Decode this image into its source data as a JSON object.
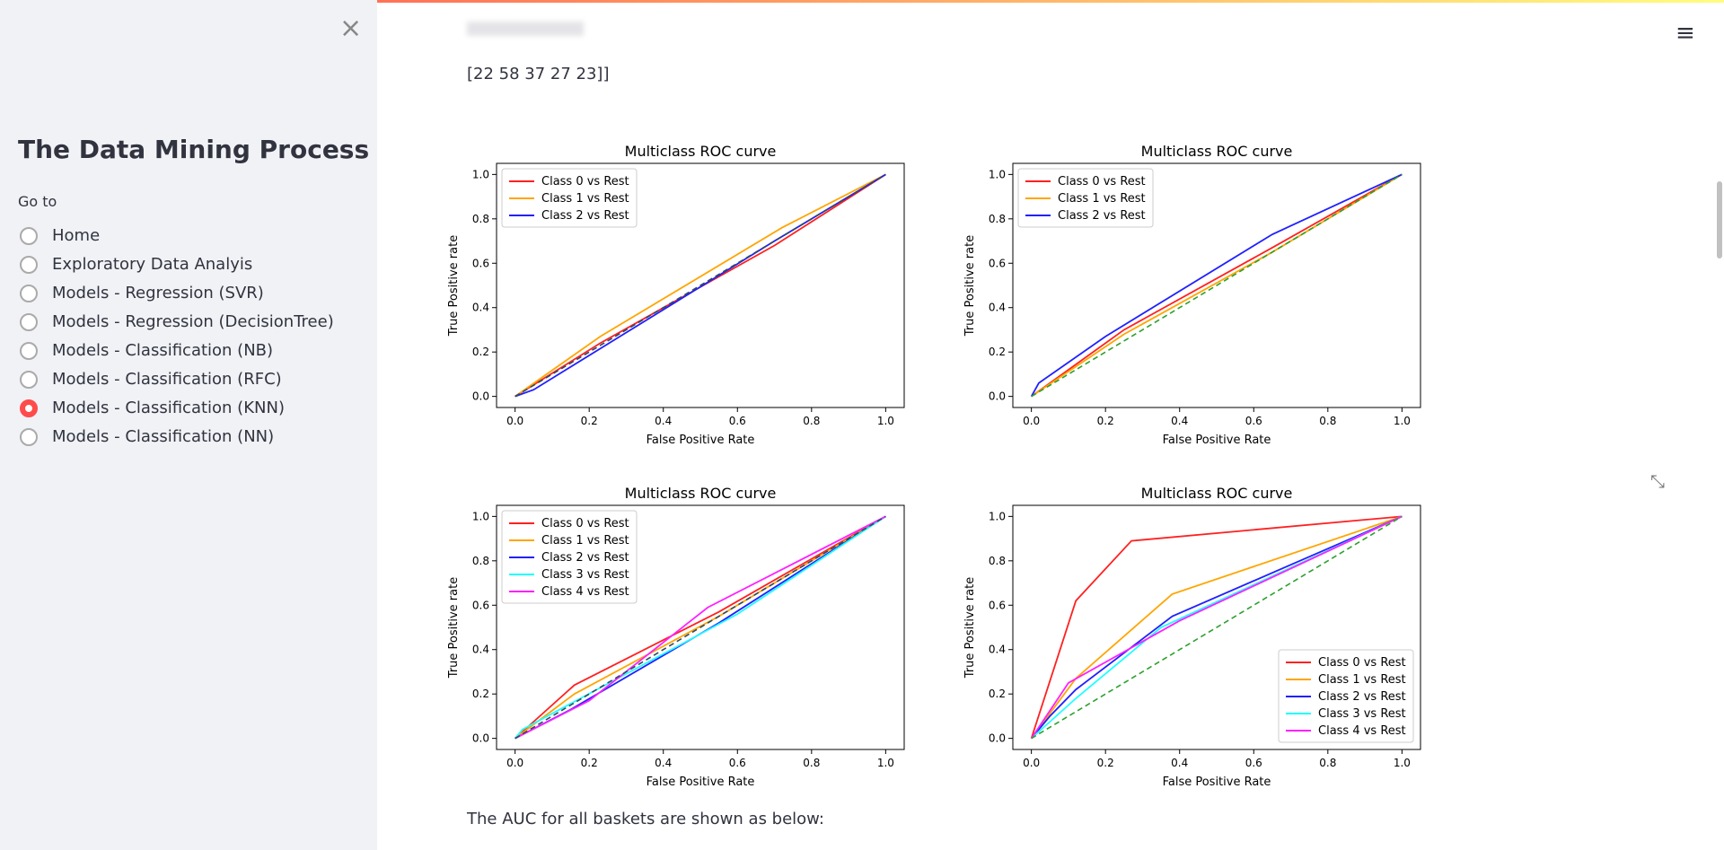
{
  "sidebar": {
    "title": "The Data Mining Process",
    "label": "Go to",
    "options": [
      "Home",
      "Exploratory Data Analyis",
      "Models - Regression (SVR)",
      "Models - Regression (DecisionTree)",
      "Models - Classification (NB)",
      "Models - Classification (RFC)",
      "Models - Classification (KNN)",
      "Models - Classification (NN)"
    ],
    "selected": 6
  },
  "content": {
    "matrix_tail": "[22 58 37 27 23]]",
    "footer": "The AUC for all baskets are shown as below:"
  },
  "chart_data": [
    {
      "type": "line",
      "title": "Multiclass ROC curve",
      "xlabel": "False Positive Rate",
      "ylabel": "True Positive rate",
      "xlim": [
        -0.05,
        1.05
      ],
      "ylim": [
        -0.05,
        1.05
      ],
      "xticks": [
        {
          "value": 0,
          "label": "0.0"
        },
        {
          "value": 0.2,
          "label": "0.2"
        },
        {
          "value": 0.4,
          "label": "0.4"
        },
        {
          "value": 0.6,
          "label": "0.6"
        },
        {
          "value": 0.8,
          "label": "0.8"
        },
        {
          "value": 1,
          "label": "1.0"
        }
      ],
      "yticks": [
        {
          "value": 0,
          "label": "0.0"
        },
        {
          "value": 0.2,
          "label": "0.2"
        },
        {
          "value": 0.4,
          "label": "0.4"
        },
        {
          "value": 0.6,
          "label": "0.6"
        },
        {
          "value": 0.8,
          "label": "0.8"
        },
        {
          "value": 1,
          "label": "1.0"
        }
      ],
      "legend": "upper left",
      "reference_line": {
        "x": [
          0,
          1
        ],
        "values": [
          0,
          1
        ],
        "color": "#2e4a62"
      },
      "series": [
        {
          "name": "Class 0 vs Rest",
          "color": "#ff2020",
          "x": [
            0,
            0.23,
            0.7,
            1
          ],
          "values": [
            0,
            0.24,
            0.68,
            1
          ]
        },
        {
          "name": "Class 1 vs Rest",
          "color": "#ffa500",
          "x": [
            0,
            0.23,
            0.72,
            1
          ],
          "values": [
            0,
            0.27,
            0.76,
            1
          ]
        },
        {
          "name": "Class 2 vs Rest",
          "color": "#2020ff",
          "x": [
            0,
            0.05,
            0.7,
            1
          ],
          "values": [
            0,
            0.03,
            0.7,
            1
          ]
        }
      ]
    },
    {
      "type": "line",
      "title": "Multiclass ROC curve",
      "xlabel": "False Positive Rate",
      "ylabel": "True Positive rate",
      "xlim": [
        -0.05,
        1.05
      ],
      "ylim": [
        -0.05,
        1.05
      ],
      "xticks": [
        {
          "value": 0,
          "label": "0.0"
        },
        {
          "value": 0.2,
          "label": "0.2"
        },
        {
          "value": 0.4,
          "label": "0.4"
        },
        {
          "value": 0.6,
          "label": "0.6"
        },
        {
          "value": 0.8,
          "label": "0.8"
        },
        {
          "value": 1,
          "label": "1.0"
        }
      ],
      "yticks": [
        {
          "value": 0,
          "label": "0.0"
        },
        {
          "value": 0.2,
          "label": "0.2"
        },
        {
          "value": 0.4,
          "label": "0.4"
        },
        {
          "value": 0.6,
          "label": "0.6"
        },
        {
          "value": 0.8,
          "label": "0.8"
        },
        {
          "value": 1,
          "label": "1.0"
        }
      ],
      "legend": "upper left",
      "reference_line": {
        "x": [
          0,
          1
        ],
        "values": [
          0,
          1
        ],
        "color": "#2ca02c"
      },
      "series": [
        {
          "name": "Class 0 vs Rest",
          "color": "#ff2020",
          "x": [
            0,
            0.25,
            0.65,
            1
          ],
          "values": [
            0,
            0.3,
            0.67,
            1
          ]
        },
        {
          "name": "Class 1 vs Rest",
          "color": "#ffa500",
          "x": [
            0,
            0.25,
            0.65,
            1
          ],
          "values": [
            0,
            0.28,
            0.65,
            1
          ]
        },
        {
          "name": "Class 2 vs Rest",
          "color": "#2020ff",
          "x": [
            0,
            0.02,
            0.2,
            0.65,
            1
          ],
          "values": [
            0,
            0.06,
            0.27,
            0.73,
            1
          ]
        }
      ]
    },
    {
      "type": "line",
      "title": "Multiclass ROC curve",
      "xlabel": "False Positive Rate",
      "ylabel": "True Positive rate",
      "xlim": [
        -0.05,
        1.05
      ],
      "ylim": [
        -0.05,
        1.05
      ],
      "xticks": [
        {
          "value": 0,
          "label": "0.0"
        },
        {
          "value": 0.2,
          "label": "0.2"
        },
        {
          "value": 0.4,
          "label": "0.4"
        },
        {
          "value": 0.6,
          "label": "0.6"
        },
        {
          "value": 0.8,
          "label": "0.8"
        },
        {
          "value": 1,
          "label": "1.0"
        }
      ],
      "yticks": [
        {
          "value": 0,
          "label": "0.0"
        },
        {
          "value": 0.2,
          "label": "0.2"
        },
        {
          "value": 0.4,
          "label": "0.4"
        },
        {
          "value": 0.6,
          "label": "0.6"
        },
        {
          "value": 0.8,
          "label": "0.8"
        },
        {
          "value": 1,
          "label": "1.0"
        }
      ],
      "legend": "upper left",
      "reference_line": {
        "x": [
          0,
          1
        ],
        "values": [
          0,
          1
        ],
        "color": "#2e4a62"
      },
      "series": [
        {
          "name": "Class 0 vs Rest",
          "color": "#ff2020",
          "x": [
            0,
            0.16,
            0.55,
            1
          ],
          "values": [
            0,
            0.24,
            0.57,
            1
          ]
        },
        {
          "name": "Class 1 vs Rest",
          "color": "#ffa500",
          "x": [
            0,
            0.16,
            0.55,
            1
          ],
          "values": [
            0,
            0.2,
            0.55,
            1
          ]
        },
        {
          "name": "Class 2 vs Rest",
          "color": "#2020ff",
          "x": [
            0,
            0.15,
            0.55,
            1
          ],
          "values": [
            0,
            0.13,
            0.52,
            1
          ]
        },
        {
          "name": "Class 3 vs Rest",
          "color": "#20ffff",
          "x": [
            0,
            0.02,
            0.6,
            1
          ],
          "values": [
            0,
            0.04,
            0.56,
            1
          ]
        },
        {
          "name": "Class 4 vs Rest",
          "color": "#ff20ff",
          "x": [
            0,
            0.2,
            0.52,
            1
          ],
          "values": [
            0,
            0.17,
            0.59,
            1
          ]
        }
      ]
    },
    {
      "type": "line",
      "title": "Multiclass ROC curve",
      "xlabel": "False Positive Rate",
      "ylabel": "True Positive rate",
      "xlim": [
        -0.05,
        1.05
      ],
      "ylim": [
        -0.05,
        1.05
      ],
      "xticks": [
        {
          "value": 0,
          "label": "0.0"
        },
        {
          "value": 0.2,
          "label": "0.2"
        },
        {
          "value": 0.4,
          "label": "0.4"
        },
        {
          "value": 0.6,
          "label": "0.6"
        },
        {
          "value": 0.8,
          "label": "0.8"
        },
        {
          "value": 1,
          "label": "1.0"
        }
      ],
      "yticks": [
        {
          "value": 0,
          "label": "0.0"
        },
        {
          "value": 0.2,
          "label": "0.2"
        },
        {
          "value": 0.4,
          "label": "0.4"
        },
        {
          "value": 0.6,
          "label": "0.6"
        },
        {
          "value": 0.8,
          "label": "0.8"
        },
        {
          "value": 1,
          "label": "1.0"
        }
      ],
      "legend": "lower right",
      "reference_line": {
        "x": [
          0,
          1
        ],
        "values": [
          0,
          1
        ],
        "color": "#2ca02c"
      },
      "series": [
        {
          "name": "Class 0 vs Rest",
          "color": "#ff2020",
          "x": [
            0,
            0.12,
            0.27,
            1
          ],
          "values": [
            0,
            0.62,
            0.89,
            1
          ]
        },
        {
          "name": "Class 1 vs Rest",
          "color": "#ffa500",
          "x": [
            0,
            0.12,
            0.38,
            1
          ],
          "values": [
            0,
            0.27,
            0.65,
            1
          ]
        },
        {
          "name": "Class 2 vs Rest",
          "color": "#2020ff",
          "x": [
            0,
            0.05,
            0.12,
            0.38,
            1
          ],
          "values": [
            0,
            0.1,
            0.22,
            0.55,
            1
          ]
        },
        {
          "name": "Class 3 vs Rest",
          "color": "#20ffff",
          "x": [
            0,
            0.12,
            0.35,
            1
          ],
          "values": [
            0,
            0.18,
            0.5,
            1
          ]
        },
        {
          "name": "Class 4 vs Rest",
          "color": "#ff20ff",
          "x": [
            0,
            0.1,
            0.4,
            1
          ],
          "values": [
            0,
            0.25,
            0.53,
            1
          ]
        }
      ]
    }
  ]
}
